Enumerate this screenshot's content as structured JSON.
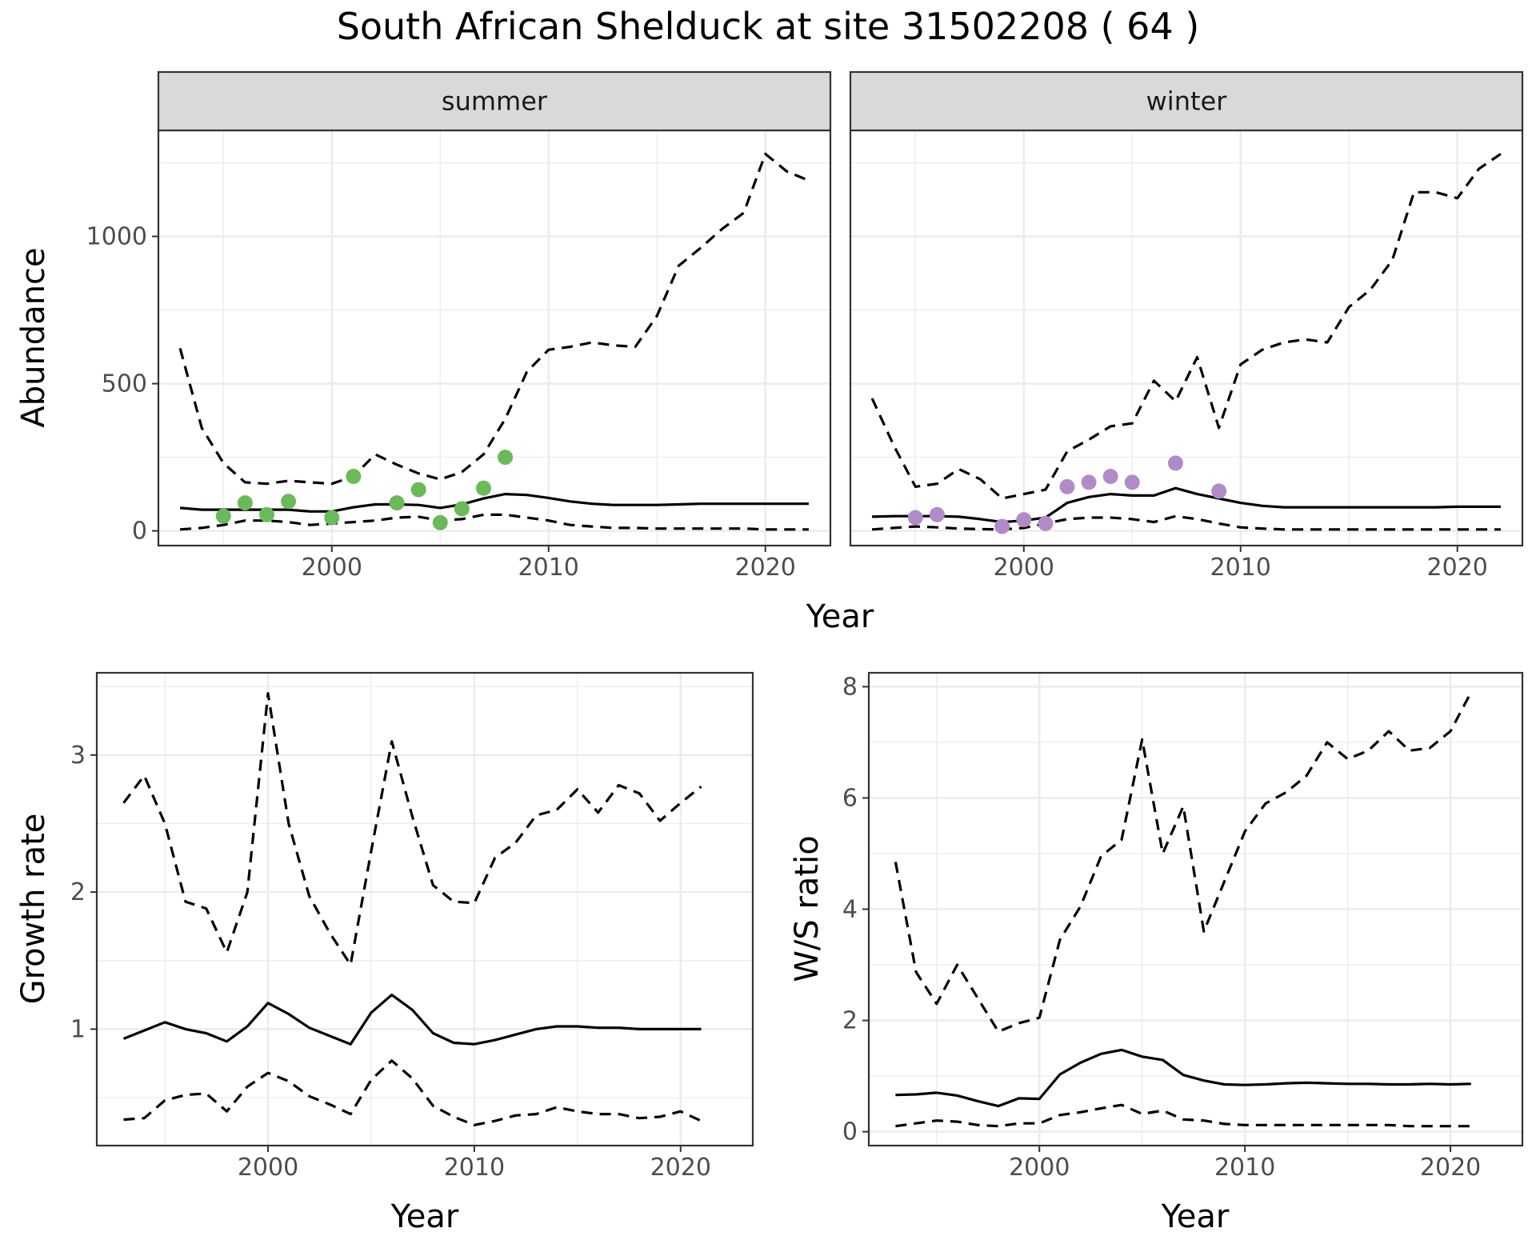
{
  "title": "South African Shelduck at site 31502208 ( 64 )",
  "colors": {
    "summer_points": "#6ABA5A",
    "winter_points": "#B18BC9",
    "grid": "#EBEBEB",
    "strip": "#D9D9D9",
    "line": "#000000"
  },
  "chart_data": [
    {
      "type": "line",
      "panel": "summer",
      "strip_label": "summer",
      "ylabel": "Abundance",
      "xlabel": "Year",
      "xlim": [
        1992,
        2023
      ],
      "ylim": [
        -50,
        1360
      ],
      "xticks": [
        2000,
        2010,
        2020
      ],
      "yticks": [
        0,
        500,
        1000
      ],
      "x": [
        1993,
        1994,
        1995,
        1996,
        1997,
        1998,
        1999,
        2000,
        2001,
        2002,
        2003,
        2004,
        2005,
        2006,
        2007,
        2008,
        2009,
        2010,
        2011,
        2012,
        2013,
        2014,
        2015,
        2016,
        2017,
        2018,
        2019,
        2020,
        2021,
        2022
      ],
      "series": [
        {
          "role": "mean",
          "style": "solid",
          "values": [
            78,
            72,
            72,
            72,
            72,
            72,
            66,
            66,
            80,
            90,
            90,
            88,
            78,
            90,
            110,
            125,
            122,
            112,
            100,
            92,
            88,
            88,
            88,
            90,
            92,
            92,
            92,
            92,
            92,
            92
          ]
        },
        {
          "role": "upper",
          "style": "dashed",
          "values": [
            620,
            350,
            230,
            165,
            160,
            170,
            165,
            160,
            185,
            260,
            225,
            195,
            175,
            200,
            260,
            380,
            540,
            615,
            625,
            640,
            630,
            625,
            730,
            900,
            960,
            1025,
            1080,
            1280,
            1220,
            1190
          ]
        },
        {
          "role": "lower",
          "style": "dashed",
          "values": [
            5,
            10,
            20,
            35,
            35,
            30,
            20,
            25,
            30,
            35,
            45,
            48,
            35,
            40,
            55,
            55,
            45,
            35,
            20,
            15,
            10,
            10,
            8,
            8,
            8,
            8,
            8,
            5,
            5,
            5
          ]
        }
      ],
      "points": {
        "x": [
          1995,
          1996,
          1997,
          1998,
          2000,
          2001,
          2003,
          2004,
          2005,
          2006,
          2007,
          2008
        ],
        "y": [
          50,
          95,
          55,
          100,
          45,
          185,
          95,
          140,
          28,
          75,
          145,
          250
        ]
      }
    },
    {
      "type": "line",
      "panel": "winter",
      "strip_label": "winter",
      "xlabel": "Year",
      "xlim": [
        1992,
        2023
      ],
      "ylim": [
        -50,
        1360
      ],
      "xticks": [
        2000,
        2010,
        2020
      ],
      "yticks": [
        0,
        500,
        1000
      ],
      "x": [
        1993,
        1994,
        1995,
        1996,
        1997,
        1998,
        1999,
        2000,
        2001,
        2002,
        2003,
        2004,
        2005,
        2006,
        2007,
        2008,
        2009,
        2010,
        2011,
        2012,
        2013,
        2014,
        2015,
        2016,
        2017,
        2018,
        2019,
        2020,
        2021,
        2022
      ],
      "series": [
        {
          "role": "mean",
          "style": "solid",
          "values": [
            48,
            50,
            50,
            50,
            48,
            40,
            30,
            35,
            45,
            95,
            115,
            125,
            120,
            120,
            145,
            125,
            110,
            95,
            85,
            80,
            80,
            80,
            80,
            80,
            80,
            80,
            80,
            82,
            82,
            82
          ]
        },
        {
          "role": "upper",
          "style": "dashed",
          "values": [
            450,
            290,
            150,
            160,
            210,
            175,
            110,
            125,
            140,
            270,
            310,
            355,
            365,
            510,
            440,
            590,
            350,
            565,
            615,
            640,
            650,
            640,
            760,
            820,
            920,
            1150,
            1150,
            1130,
            1230,
            1280
          ]
        },
        {
          "role": "lower",
          "style": "dashed",
          "values": [
            5,
            10,
            15,
            12,
            8,
            6,
            5,
            10,
            25,
            40,
            45,
            45,
            40,
            30,
            50,
            40,
            25,
            12,
            8,
            5,
            5,
            5,
            5,
            5,
            5,
            5,
            5,
            5,
            5,
            5
          ]
        }
      ],
      "points": {
        "x": [
          1995,
          1996,
          1999,
          2000,
          2001,
          2002,
          2003,
          2004,
          2005,
          2007,
          2009
        ],
        "y": [
          45,
          55,
          15,
          38,
          25,
          150,
          165,
          185,
          165,
          230,
          135
        ]
      }
    },
    {
      "type": "line",
      "panel": "growth",
      "ylabel": "Growth rate",
      "xlabel": "Year",
      "xlim": [
        1991.7,
        2023.5
      ],
      "ylim": [
        0.15,
        3.6
      ],
      "xticks": [
        2000,
        2010,
        2020
      ],
      "yticks": [
        1,
        2,
        3
      ],
      "x": [
        1993,
        1994,
        1995,
        1996,
        1997,
        1998,
        1999,
        2000,
        2001,
        2002,
        2003,
        2004,
        2005,
        2006,
        2007,
        2008,
        2009,
        2010,
        2011,
        2012,
        2013,
        2014,
        2015,
        2016,
        2017,
        2018,
        2019,
        2020,
        2021
      ],
      "series": [
        {
          "role": "mean",
          "style": "solid",
          "values": [
            0.93,
            0.99,
            1.05,
            1.0,
            0.97,
            0.91,
            1.02,
            1.19,
            1.11,
            1.01,
            0.95,
            0.89,
            1.12,
            1.25,
            1.14,
            0.97,
            0.9,
            0.89,
            0.92,
            0.96,
            1.0,
            1.02,
            1.02,
            1.01,
            1.01,
            1.0,
            1.0,
            1.0,
            1.0
          ]
        },
        {
          "role": "upper",
          "style": "dashed",
          "values": [
            2.65,
            2.85,
            2.5,
            1.93,
            1.88,
            1.56,
            2.0,
            3.45,
            2.5,
            1.97,
            1.7,
            1.47,
            2.3,
            3.1,
            2.55,
            2.05,
            1.93,
            1.92,
            2.25,
            2.36,
            2.56,
            2.6,
            2.75,
            2.58,
            2.78,
            2.72,
            2.52,
            2.65,
            2.77
          ]
        },
        {
          "role": "lower",
          "style": "dashed",
          "values": [
            0.34,
            0.35,
            0.48,
            0.52,
            0.53,
            0.4,
            0.58,
            0.68,
            0.62,
            0.51,
            0.45,
            0.38,
            0.63,
            0.77,
            0.64,
            0.44,
            0.36,
            0.3,
            0.33,
            0.37,
            0.38,
            0.43,
            0.4,
            0.38,
            0.38,
            0.35,
            0.36,
            0.4,
            0.33
          ]
        }
      ]
    },
    {
      "type": "line",
      "panel": "ratio",
      "ylabel": "W/S ratio",
      "xlabel": "Year",
      "xlim": [
        1991.7,
        2023.5
      ],
      "ylim": [
        -0.25,
        8.25
      ],
      "xticks": [
        2000,
        2010,
        2020
      ],
      "yticks": [
        0,
        2,
        4,
        6,
        8
      ],
      "x": [
        1993,
        1994,
        1995,
        1996,
        1997,
        1998,
        1999,
        2000,
        2001,
        2002,
        2003,
        2004,
        2005,
        2006,
        2007,
        2008,
        2009,
        2010,
        2011,
        2012,
        2013,
        2014,
        2015,
        2016,
        2017,
        2018,
        2019,
        2020,
        2021
      ],
      "series": [
        {
          "role": "mean",
          "style": "solid",
          "values": [
            0.66,
            0.67,
            0.7,
            0.65,
            0.55,
            0.46,
            0.6,
            0.59,
            1.03,
            1.24,
            1.4,
            1.47,
            1.35,
            1.29,
            1.02,
            0.92,
            0.85,
            0.84,
            0.85,
            0.87,
            0.88,
            0.87,
            0.86,
            0.86,
            0.85,
            0.85,
            0.86,
            0.85,
            0.86
          ]
        },
        {
          "role": "upper",
          "style": "dashed",
          "values": [
            4.85,
            2.87,
            2.3,
            3.0,
            2.4,
            1.8,
            1.95,
            2.05,
            3.45,
            4.05,
            4.95,
            5.25,
            7.05,
            5.0,
            5.85,
            3.6,
            4.5,
            5.4,
            5.9,
            6.1,
            6.4,
            7.0,
            6.7,
            6.85,
            7.2,
            6.85,
            6.9,
            7.2,
            7.9
          ]
        },
        {
          "role": "lower",
          "style": "dashed",
          "values": [
            0.1,
            0.15,
            0.2,
            0.18,
            0.12,
            0.1,
            0.15,
            0.15,
            0.3,
            0.35,
            0.42,
            0.48,
            0.32,
            0.38,
            0.22,
            0.2,
            0.14,
            0.12,
            0.12,
            0.12,
            0.12,
            0.12,
            0.12,
            0.12,
            0.12,
            0.1,
            0.1,
            0.1,
            0.1
          ]
        }
      ]
    }
  ]
}
